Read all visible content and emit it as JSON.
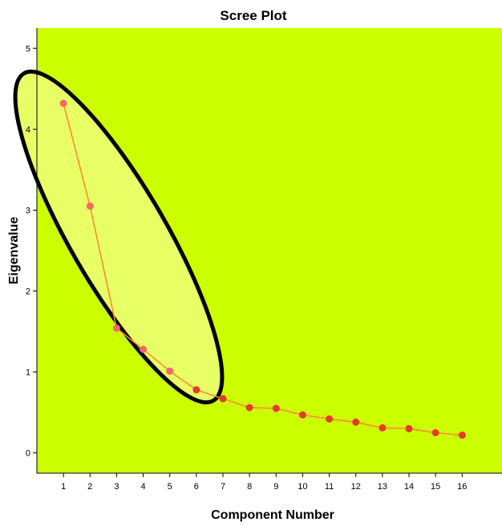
{
  "chart_data": {
    "type": "line",
    "title": "Scree Plot",
    "xlabel": "Component Number",
    "ylabel": "Eigenvalue",
    "x": [
      1,
      2,
      3,
      4,
      5,
      6,
      7,
      8,
      9,
      10,
      11,
      12,
      13,
      14,
      15,
      16
    ],
    "values": [
      4.32,
      3.05,
      1.54,
      1.28,
      1.01,
      0.78,
      0.67,
      0.56,
      0.55,
      0.47,
      0.42,
      0.38,
      0.31,
      0.3,
      0.25,
      0.22
    ],
    "xlim": [
      0,
      17.5
    ],
    "ylim": [
      -0.25,
      5.25
    ],
    "x_ticks": [
      1,
      2,
      3,
      4,
      5,
      6,
      7,
      8,
      9,
      10,
      11,
      12,
      13,
      14,
      15,
      16
    ],
    "y_ticks": [
      0,
      1,
      2,
      3,
      4,
      5
    ],
    "plot_background": "#ccff00",
    "line_color": "#ff8a3a",
    "marker_color": "#e83a2a",
    "annotation": {
      "shape": "ellipse",
      "encloses_components": [
        1,
        2,
        3,
        4,
        5
      ],
      "stroke": "#000000",
      "fill": "#e8ff66"
    },
    "grid": false,
    "legend": "none"
  }
}
